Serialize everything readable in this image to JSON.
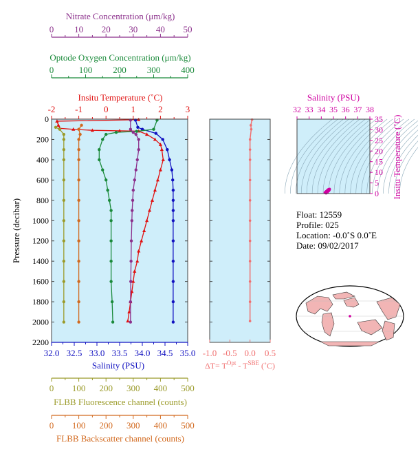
{
  "colors": {
    "nitrate": "#8b2f8b",
    "oxygen": "#1a8a3a",
    "temperature": "#e01010",
    "salinity": "#1010c0",
    "fluorescence": "#9b9b2a",
    "backscatter": "#d2691e",
    "delta_t": "#f07070",
    "ts_axis": "#d000a0",
    "plot_bg": "#cfeefa",
    "land": "#f2b5b5",
    "frame": "#808020"
  },
  "chart_data": [
    {
      "id": "profile",
      "type": "line",
      "ylabel": "Pressure (decibar)",
      "ylim": [
        0,
        2200
      ],
      "yticks": [
        0,
        200,
        400,
        600,
        800,
        1000,
        1200,
        1400,
        1600,
        1800,
        2000,
        2200
      ],
      "axes": {
        "nitrate": {
          "label": "Nitrate Concentration (μm/kg)",
          "range": [
            0,
            50
          ],
          "ticks": [
            0,
            10,
            20,
            30,
            40,
            50
          ]
        },
        "oxygen": {
          "label": "Optode Oxygen Concentration (μm/kg)",
          "range": [
            0,
            400
          ],
          "ticks": [
            0,
            100,
            200,
            300,
            400
          ]
        },
        "temperature": {
          "label": "Insitu Temperature (˚C)",
          "range": [
            -2,
            3
          ],
          "ticks": [
            -2,
            -1,
            0,
            1,
            2,
            3
          ]
        },
        "salinity": {
          "label": "Salinity (PSU)",
          "range": [
            32,
            35
          ],
          "ticks": [
            "32.0",
            "32.5",
            "33.0",
            "33.5",
            "34.0",
            "34.5",
            "35.0"
          ]
        },
        "fluorescence": {
          "label": "FLBB Fluorescence channel (counts)",
          "range": [
            0,
            500
          ],
          "ticks": [
            0,
            100,
            200,
            300,
            400,
            500
          ]
        },
        "backscatter": {
          "label": "FLBB Backscatter channel (counts)",
          "range": [
            0,
            500
          ],
          "ticks": [
            0,
            100,
            200,
            300,
            400,
            500
          ]
        }
      },
      "series": [
        {
          "key": "temperature",
          "marker": "triangle",
          "points": [
            [
              1.2,
              5
            ],
            [
              -1.8,
              20
            ],
            [
              -1.75,
              60
            ],
            [
              -1.7,
              90
            ],
            [
              -1.2,
              100
            ],
            [
              -0.5,
              110
            ],
            [
              0.5,
              115
            ],
            [
              1.2,
              118
            ],
            [
              1.5,
              150
            ],
            [
              1.8,
              200
            ],
            [
              2.0,
              250
            ],
            [
              2.05,
              300
            ],
            [
              2.1,
              400
            ],
            [
              2.0,
              500
            ],
            [
              1.9,
              600
            ],
            [
              1.8,
              700
            ],
            [
              1.7,
              800
            ],
            [
              1.6,
              900
            ],
            [
              1.5,
              1000
            ],
            [
              1.4,
              1100
            ],
            [
              1.3,
              1200
            ],
            [
              1.2,
              1300
            ],
            [
              1.15,
              1400
            ],
            [
              1.05,
              1500
            ],
            [
              1.0,
              1600
            ],
            [
              0.95,
              1700
            ],
            [
              0.9,
              1800
            ],
            [
              0.85,
              1900
            ],
            [
              0.8,
              1990
            ]
          ]
        },
        {
          "key": "salinity",
          "marker": "circle",
          "points": [
            [
              33.85,
              10
            ],
            [
              33.9,
              80
            ],
            [
              34.0,
              100
            ],
            [
              34.3,
              140
            ],
            [
              34.45,
              200
            ],
            [
              34.55,
              300
            ],
            [
              34.6,
              400
            ],
            [
              34.65,
              500
            ],
            [
              34.67,
              600
            ],
            [
              34.68,
              700
            ],
            [
              34.68,
              800
            ],
            [
              34.68,
              900
            ],
            [
              34.68,
              1000
            ],
            [
              34.68,
              1200
            ],
            [
              34.68,
              1400
            ],
            [
              34.68,
              1600
            ],
            [
              34.68,
              1800
            ],
            [
              34.68,
              2000
            ]
          ]
        },
        {
          "key": "oxygen",
          "marker": "circle",
          "points": [
            [
              310,
              10
            ],
            [
              300,
              100
            ],
            [
              250,
              120
            ],
            [
              190,
              130
            ],
            [
              160,
              150
            ],
            [
              150,
              200
            ],
            [
              140,
              300
            ],
            [
              140,
              400
            ],
            [
              150,
              500
            ],
            [
              160,
              600
            ],
            [
              165,
              700
            ],
            [
              170,
              800
            ],
            [
              175,
              900
            ],
            [
              175,
              1000
            ],
            [
              175,
              1200
            ],
            [
              175,
              1400
            ],
            [
              175,
              1600
            ],
            [
              178,
              1800
            ],
            [
              180,
              2000
            ]
          ]
        },
        {
          "key": "nitrate",
          "marker": "circle",
          "points": [
            [
              29,
              10
            ],
            [
              29,
              100
            ],
            [
              30,
              130
            ],
            [
              31,
              150
            ],
            [
              32,
              200
            ],
            [
              32,
              300
            ],
            [
              31.5,
              400
            ],
            [
              31,
              500
            ],
            [
              30.5,
              600
            ],
            [
              30,
              700
            ],
            [
              29.8,
              800
            ],
            [
              29.6,
              900
            ],
            [
              29.5,
              1000
            ],
            [
              29.3,
              1200
            ],
            [
              29.2,
              1400
            ],
            [
              29.1,
              1600
            ],
            [
              29,
              1800
            ],
            [
              29,
              2000
            ]
          ]
        },
        {
          "key": "fluorescence",
          "marker": "circle",
          "points": [
            [
              15,
              80
            ],
            [
              30,
              100
            ],
            [
              45,
              150
            ],
            [
              45,
              200
            ],
            [
              45,
              300
            ],
            [
              45,
              400
            ],
            [
              45,
              600
            ],
            [
              45,
              800
            ],
            [
              45,
              1000
            ],
            [
              45,
              1200
            ],
            [
              45,
              1400
            ],
            [
              45,
              1600
            ],
            [
              45,
              1800
            ],
            [
              45,
              2000
            ]
          ]
        },
        {
          "key": "backscatter",
          "marker": "circle",
          "points": [
            [
              110,
              60
            ],
            [
              100,
              100
            ],
            [
              105,
              150
            ],
            [
              100,
              200
            ],
            [
              100,
              300
            ],
            [
              100,
              400
            ],
            [
              100,
              600
            ],
            [
              100,
              800
            ],
            [
              100,
              1000
            ],
            [
              100,
              1200
            ],
            [
              100,
              1400
            ],
            [
              100,
              1600
            ],
            [
              100,
              1800
            ],
            [
              100,
              2000
            ]
          ]
        }
      ]
    },
    {
      "id": "delta_t",
      "type": "line",
      "xlabel": "ΔT= T",
      "xlabel_sup1": "Opt",
      "xlabel_mid": " - T",
      "xlabel_sup2": "SBE",
      "xlabel_unit": " (˚C)",
      "xlim": [
        -1.0,
        0.5
      ],
      "ylim": [
        0,
        2200
      ],
      "xticks": [
        "-1.0",
        "-0.5",
        "0.0",
        "0.5"
      ],
      "points": [
        [
          0.05,
          5
        ],
        [
          0.02,
          60
        ],
        [
          0.03,
          100
        ],
        [
          0.0,
          200
        ],
        [
          0.0,
          300
        ],
        [
          0.0,
          400
        ],
        [
          0.0,
          600
        ],
        [
          0.0,
          800
        ],
        [
          0.0,
          1000
        ],
        [
          0.0,
          1200
        ],
        [
          0.0,
          1400
        ],
        [
          0.0,
          1600
        ],
        [
          0.0,
          1800
        ],
        [
          0.0,
          1990
        ]
      ]
    },
    {
      "id": "ts",
      "type": "scatter",
      "title": "Salinity (PSU)",
      "ylabel": "Insitu Temperature (˚C)",
      "xlim": [
        32,
        38
      ],
      "ylim": [
        0,
        35
      ],
      "xticks": [
        32,
        33,
        34,
        35,
        36,
        37,
        38
      ],
      "yticks": [
        0,
        5,
        10,
        15,
        20,
        25,
        30,
        35
      ],
      "points": [
        [
          34.4,
          0.2
        ],
        [
          34.5,
          0.6
        ],
        [
          34.6,
          1.2
        ],
        [
          34.65,
          1.6
        ],
        [
          34.68,
          1.9
        ],
        [
          34.68,
          2.1
        ],
        [
          34.6,
          2.0
        ],
        [
          34.5,
          1.6
        ],
        [
          34.4,
          1.0
        ],
        [
          34.3,
          0.5
        ],
        [
          34.35,
          0.3
        ]
      ]
    }
  ],
  "info": {
    "float": "Float:  12559",
    "profile": "Profile:  025",
    "location": "Location:  -0.0˚S   0.0˚E",
    "date": "Date:  09/02/2017"
  }
}
